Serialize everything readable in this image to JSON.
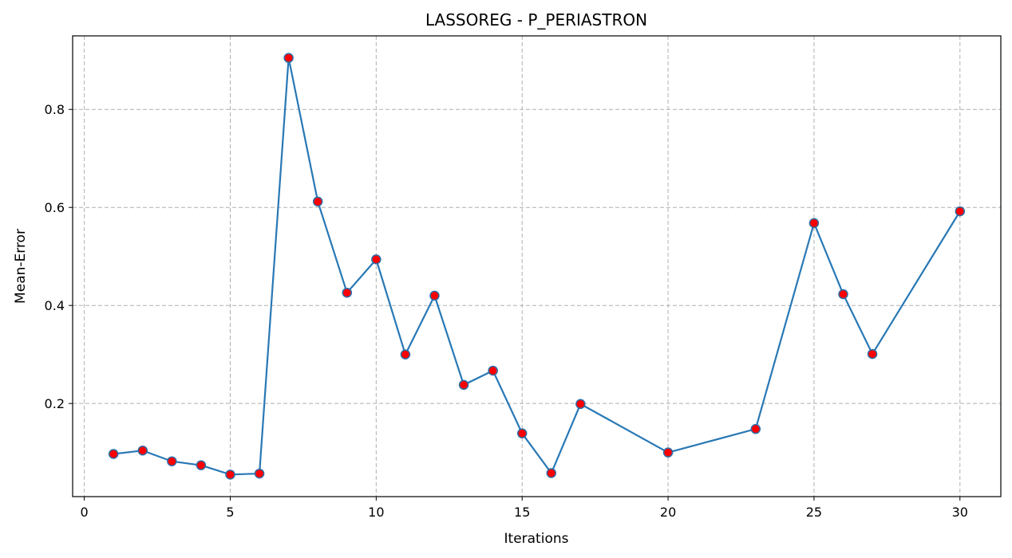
{
  "chart_data": {
    "type": "line",
    "title": "LASSOREG - P_PERIASTRON",
    "xlabel": "Iterations",
    "ylabel": "Mean-Error",
    "xlim": [
      -0.4,
      31.4
    ],
    "ylim": [
      0.01,
      0.95
    ],
    "xticks": [
      0,
      5,
      10,
      15,
      20,
      25,
      30
    ],
    "yticks": [
      0.2,
      0.4,
      0.6,
      0.8
    ],
    "xtick_labels": [
      "0",
      "5",
      "10",
      "15",
      "20",
      "25",
      "30"
    ],
    "ytick_labels": [
      "0.2",
      "0.4",
      "0.6",
      "0.8"
    ],
    "grid": true,
    "line_color": "#2878b5",
    "marker_color": "#ff0000",
    "series": [
      {
        "x": [
          1,
          2,
          3,
          4,
          5,
          6,
          7,
          8,
          9,
          10,
          11,
          12,
          13,
          14,
          15,
          16,
          17,
          20,
          23,
          25,
          26,
          27,
          30
        ],
        "y": [
          0.097,
          0.104,
          0.082,
          0.074,
          0.055,
          0.057,
          0.905,
          0.612,
          0.426,
          0.494,
          0.3,
          0.42,
          0.238,
          0.267,
          0.139,
          0.058,
          0.199,
          0.1,
          0.148,
          0.568,
          0.423,
          0.301,
          0.592
        ]
      }
    ]
  }
}
